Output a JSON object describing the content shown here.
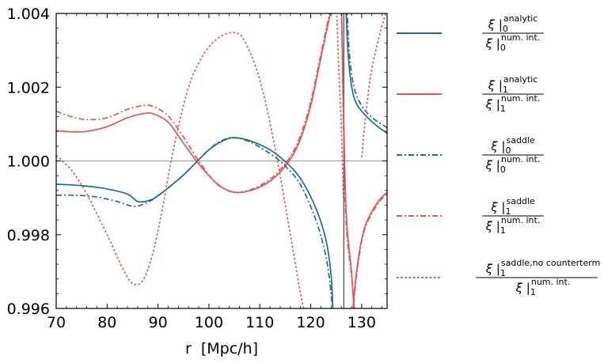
{
  "chart_data": {
    "type": "line",
    "xlabel": "r  [Mpc/h]",
    "ylabel": "",
    "xlim": [
      70,
      135
    ],
    "ylim": [
      0.996,
      1.004
    ],
    "x_ticks": [
      70,
      80,
      90,
      100,
      110,
      120,
      130
    ],
    "x_tick_labels": [
      "70",
      "80",
      "90",
      "100",
      "110",
      "120",
      "130"
    ],
    "y_ticks": [
      0.996,
      0.998,
      1.0,
      1.002,
      1.004
    ],
    "y_tick_labels": [
      "0.996",
      "0.998",
      "1.000",
      "1.002",
      "1.004"
    ],
    "reference_line": {
      "y": 1.0,
      "color": "#999999"
    },
    "vertical_line": {
      "x": 126.5,
      "color": "#555555"
    },
    "legend_placement": "right, outside plot",
    "series": [
      {
        "legend": {
          "top": {
            "base": "ξ",
            "sub": "0",
            "sup": "analytic"
          },
          "bottom": {
            "base": "ξ",
            "sub": "0",
            "sup": "num. int."
          }
        },
        "color": "#1f6b94",
        "style": "solid",
        "points": [
          [
            70,
            0.99937
          ],
          [
            75,
            0.99933
          ],
          [
            80,
            0.99924
          ],
          [
            84,
            0.9991
          ],
          [
            86,
            0.9989
          ],
          [
            88,
            0.99892
          ],
          [
            90,
            0.99906
          ],
          [
            95,
            0.99962
          ],
          [
            100,
            1.0003
          ],
          [
            103,
            1.00056
          ],
          [
            105,
            1.00063
          ],
          [
            108,
            1.00055
          ],
          [
            112,
            1.0003
          ],
          [
            115,
            0.99998
          ],
          [
            118,
            0.99952
          ],
          [
            121,
            0.99872
          ],
          [
            123,
            0.99785
          ],
          [
            124,
            0.9969
          ],
          [
            124.4,
            0.9958
          ]
        ],
        "points_b": [
          [
            126.9,
            1.0042
          ],
          [
            127.3,
            1.003
          ],
          [
            128,
            1.00205
          ],
          [
            129,
            1.00155
          ],
          [
            131,
            1.0012
          ],
          [
            133,
            1.00095
          ],
          [
            135,
            1.00075
          ]
        ]
      },
      {
        "legend": {
          "top": {
            "base": "ξ",
            "sub": "1",
            "sup": "analytic"
          },
          "bottom": {
            "base": "ξ",
            "sub": "1",
            "sup": "num. int."
          }
        },
        "color": "#e05555",
        "style": "solid",
        "points": [
          [
            70,
            1.00082
          ],
          [
            73,
            1.00079
          ],
          [
            76,
            1.0008
          ],
          [
            80,
            1.00093
          ],
          [
            84,
            1.00117
          ],
          [
            87,
            1.00128
          ],
          [
            89,
            1.00128
          ],
          [
            92,
            1.00105
          ],
          [
            95,
            1.00048
          ],
          [
            98,
            0.99992
          ],
          [
            101,
            0.99946
          ],
          [
            103,
            0.99925
          ],
          [
            105,
            0.99915
          ],
          [
            107,
            0.99916
          ],
          [
            110,
            0.99929
          ],
          [
            113,
            0.99956
          ],
          [
            116,
            1.00005
          ],
          [
            118,
            1.0006
          ],
          [
            120,
            1.0015
          ],
          [
            122,
            1.0028
          ],
          [
            124,
            1.0041
          ]
        ],
        "points_b": [
          [
            126.0,
            1.0046
          ],
          [
            126.5,
            1.001
          ],
          [
            127,
            0.9985
          ],
          [
            128,
            0.997
          ],
          [
            128.6,
            0.9958
          ]
        ],
        "points_c": [
          [
            128,
            0.9955
          ],
          [
            129,
            0.997
          ],
          [
            130.5,
            0.99815
          ],
          [
            133,
            0.99885
          ],
          [
            135,
            0.99915
          ]
        ]
      },
      {
        "legend": {
          "top": {
            "base": "ξ",
            "sub": "0",
            "sup": "saddle"
          },
          "bottom": {
            "base": "ξ",
            "sub": "0",
            "sup": "num. int."
          }
        },
        "color": "#1f6b94",
        "style": "dashdot",
        "points": [
          [
            70,
            0.99907
          ],
          [
            74,
            0.99907
          ],
          [
            78,
            0.99902
          ],
          [
            82,
            0.9989
          ],
          [
            85,
            0.99877
          ],
          [
            87,
            0.99882
          ],
          [
            90,
            0.99905
          ],
          [
            95,
            0.99962
          ],
          [
            100,
            1.00031
          ],
          [
            103,
            1.00058
          ],
          [
            105,
            1.00063
          ],
          [
            108,
            1.00052
          ],
          [
            112,
            1.0002
          ],
          [
            115,
            0.99986
          ],
          [
            118,
            0.99935
          ],
          [
            121,
            0.9984
          ],
          [
            123,
            0.9974
          ],
          [
            124,
            0.9964
          ],
          [
            124.3,
            0.9958
          ]
        ],
        "points_b": [
          [
            127.1,
            1.0042
          ],
          [
            127.6,
            1.0029
          ],
          [
            128.5,
            1.002
          ],
          [
            130,
            1.0015
          ],
          [
            132,
            1.00118
          ],
          [
            135,
            1.0009
          ]
        ]
      },
      {
        "legend": {
          "top": {
            "base": "ξ",
            "sub": "1",
            "sup": "saddle"
          },
          "bottom": {
            "base": "ξ",
            "sub": "1",
            "sup": "num. int."
          }
        },
        "color": "#e05555",
        "style": "dashdot",
        "points": [
          [
            70,
            1.00135
          ],
          [
            73,
            1.0012
          ],
          [
            76,
            1.00112
          ],
          [
            80,
            1.00117
          ],
          [
            84,
            1.0014
          ],
          [
            87,
            1.0015
          ],
          [
            89,
            1.00148
          ],
          [
            92,
            1.00122
          ],
          [
            95,
            1.00065
          ],
          [
            98,
            1.0
          ],
          [
            101,
            0.99945
          ],
          [
            103,
            0.99924
          ],
          [
            105,
            0.99915
          ],
          [
            107,
            0.99917
          ],
          [
            110,
            0.99933
          ],
          [
            113,
            0.99962
          ],
          [
            116,
            1.00012
          ],
          [
            118,
            1.0007
          ],
          [
            120,
            1.0016
          ],
          [
            122,
            1.0029
          ],
          [
            124,
            1.0042
          ]
        ],
        "points_b": [
          [
            126.0,
            1.0045
          ],
          [
            126.5,
            1.0005
          ],
          [
            127,
            0.9982
          ],
          [
            128,
            0.9969
          ],
          [
            128.7,
            0.9958
          ]
        ],
        "points_c": [
          [
            128.1,
            0.9955
          ],
          [
            129,
            0.9969
          ],
          [
            130.5,
            0.9981
          ],
          [
            133,
            0.9988
          ],
          [
            135,
            0.99912
          ]
        ]
      },
      {
        "legend": {
          "top": {
            "base": "ξ",
            "sub": "1",
            "sup": "saddle,no counterterm"
          },
          "bottom": {
            "base": "ξ",
            "sub": "1",
            "sup": "num. int."
          }
        },
        "color": "#e05555",
        "style": "dotted",
        "points": [
          [
            70,
            1.00015
          ],
          [
            73,
            0.99975
          ],
          [
            76,
            0.9991
          ],
          [
            80,
            0.998
          ],
          [
            83,
            0.9971
          ],
          [
            85,
            0.99668
          ],
          [
            87,
            0.99675
          ],
          [
            89,
            0.9975
          ],
          [
            91,
            0.9988
          ],
          [
            93,
            1.0003
          ],
          [
            96,
            1.002
          ],
          [
            99,
            1.0029
          ],
          [
            102,
            1.00335
          ],
          [
            105,
            1.00348
          ],
          [
            107,
            1.00325
          ],
          [
            110,
            1.0022
          ],
          [
            113,
            1.00035
          ],
          [
            116,
            0.998
          ],
          [
            118,
            0.9964
          ],
          [
            119,
            0.9958
          ]
        ],
        "points_b": [
          [
            125,
            1.0045
          ],
          [
            125.5,
            1.0025
          ],
          [
            126,
            1.001
          ],
          [
            126.4,
            0.999
          ]
        ],
        "points_c": [
          [
            130,
            1.0001
          ],
          [
            131,
            1.0015
          ],
          [
            132,
            1.0025
          ],
          [
            133.5,
            1.0034
          ],
          [
            134.7,
            1.004
          ]
        ]
      }
    ]
  }
}
